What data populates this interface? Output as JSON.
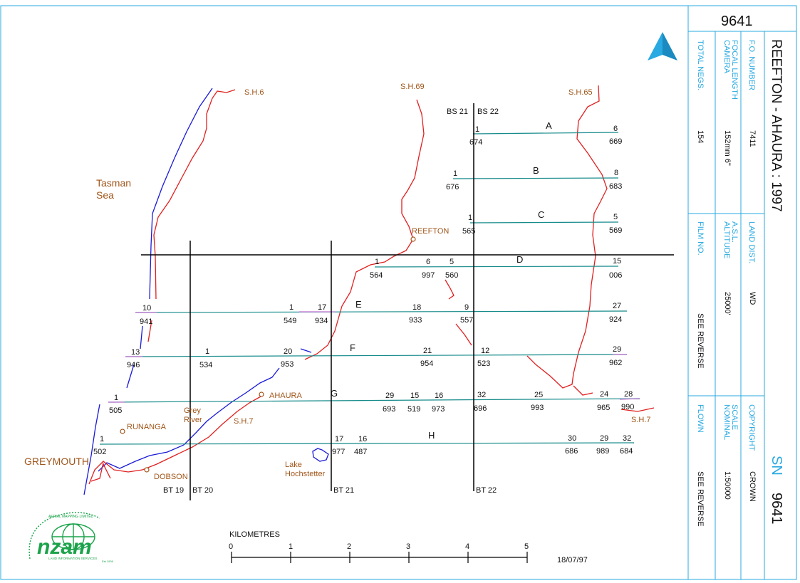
{
  "map": {
    "places": {
      "tasman1": "Tasman",
      "tasman2": "Sea",
      "reefton": "REEFTON",
      "ahaura": "AHAURA",
      "runanga": "RUNANGA",
      "greymouth": "GREYMOUTH",
      "dobson": "DOBSON",
      "grey1": "Grey",
      "grey2": "River",
      "lake1": "Lake",
      "lake2": "Hochstetter"
    },
    "roads": {
      "sh6": "S.H.6",
      "sh69": "S.H.69",
      "sh65": "S.H.65",
      "sh7a": "S.H.7",
      "sh7b": "S.H.7"
    },
    "strips": {
      "bs21": "BS 21",
      "bs22": "BS 22",
      "bt19": "BT 19",
      "bt20": "BT 20",
      "bt21": "BT 21",
      "bt22": "BT 22"
    },
    "runs": {
      "A": {
        "letter": "A",
        "labels": [
          [
            "1",
            "674"
          ],
          [
            "6",
            "669"
          ]
        ]
      },
      "B": {
        "letter": "B",
        "labels": [
          [
            "1",
            "676"
          ],
          [
            "8",
            "683"
          ]
        ]
      },
      "C": {
        "letter": "C",
        "labels": [
          [
            "1",
            "565"
          ],
          [
            "5",
            "569"
          ]
        ]
      },
      "D": {
        "letter": "D",
        "labels": [
          [
            "1",
            "564"
          ],
          [
            "6",
            "997"
          ],
          [
            "5",
            "560"
          ],
          [
            "15",
            "006"
          ]
        ]
      },
      "E": {
        "letter": "E",
        "labels": [
          [
            "10",
            "941"
          ],
          [
            "1",
            "549"
          ],
          [
            "17",
            "934"
          ],
          [
            "18",
            "933"
          ],
          [
            "9",
            "557"
          ],
          [
            "27",
            "924"
          ]
        ]
      },
      "F": {
        "letter": "F",
        "labels": [
          [
            "13",
            "946"
          ],
          [
            "1",
            "534"
          ],
          [
            "20",
            "953"
          ],
          [
            "21",
            "954"
          ],
          [
            "12",
            "523"
          ],
          [
            "29",
            "962"
          ]
        ]
      },
      "G": {
        "letter": "G",
        "labels": [
          [
            "1",
            "505"
          ],
          [
            "29",
            "693"
          ],
          [
            "15",
            "519"
          ],
          [
            "16",
            "973"
          ],
          [
            "32",
            "696"
          ],
          [
            "25",
            "993"
          ],
          [
            "24",
            "965"
          ],
          [
            "28",
            "990"
          ]
        ]
      },
      "H": {
        "letter": "H",
        "labels": [
          [
            "1",
            "502"
          ],
          [
            "17",
            "977"
          ],
          [
            "16",
            "487"
          ],
          [
            "30",
            "686"
          ],
          [
            "29",
            "989"
          ],
          [
            "32",
            "684"
          ]
        ]
      }
    },
    "north": "N",
    "scale": {
      "title": "KILOMETRES",
      "ticks": [
        "0",
        "1",
        "2",
        "3",
        "4",
        "5"
      ]
    },
    "date": "18/07/97",
    "logo": {
      "word": "nzam",
      "sub": "LAND INFORMATION SERVICES",
      "ring": "AERIAL MAPPING LIMITED",
      "est": "Est 1936"
    }
  },
  "panel": {
    "sheet": "9641",
    "title": "REEFTON - AHAURA : 1997",
    "sn_label": "SN",
    "sn_value": "9641",
    "fields": {
      "total_negs": {
        "label": "TOTAL NEGS.",
        "value": "154"
      },
      "camera1": "CAMERA",
      "camera2": "FOCAL LENGTH",
      "camera_value": "152mm 6\"",
      "fo_number": {
        "label": "F.O. NUMBER",
        "value": "7411"
      },
      "film_no": {
        "label": "FILM NO.",
        "value": "SEE REVERSE"
      },
      "altitude1": "ALTITUDE",
      "altitude2": "A.S.L.",
      "altitude_value": "25000'",
      "land_dist": {
        "label": "LAND DIST.",
        "value": "WD"
      },
      "flown": {
        "label": "FLOWN",
        "value": "SEE REVERSE"
      },
      "nominal1": "NOMINAL",
      "nominal2": "SCALE",
      "nominal_value": "1:50000",
      "copyright": {
        "label": "COPYRIGHT",
        "value": "CROWN"
      }
    }
  },
  "colors": {
    "border": "#29a9e1",
    "run": "#168a8a",
    "road": "#e02020",
    "coast": "#1a1ad8",
    "place": "#a0561a",
    "logo": "#1aa34a"
  }
}
